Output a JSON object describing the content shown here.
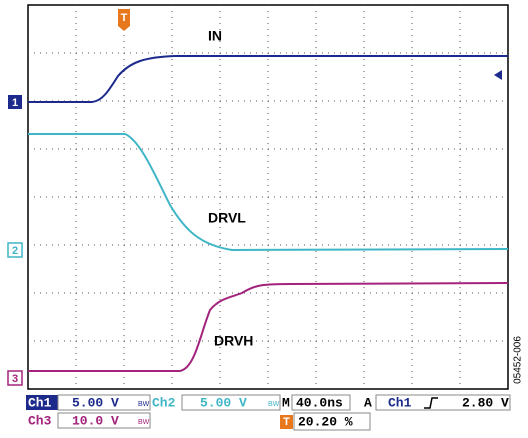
{
  "traces": {
    "in": "IN",
    "drvl": "DRVL",
    "drvh": "DRVH"
  },
  "markers": {
    "ch1": "1",
    "ch2": "2",
    "ch3": "3",
    "trigger": "T"
  },
  "status": {
    "row1": [
      "Ch1",
      "5.00 V",
      "BW",
      "Ch2",
      "5.00 V",
      "BW",
      "M",
      "40.0ns",
      "A",
      "Ch1",
      "2.80 V"
    ],
    "row2": [
      "Ch3",
      "10.0 V",
      "BW",
      "T",
      "20.20 %"
    ]
  },
  "figure_code": "05452-006"
}
